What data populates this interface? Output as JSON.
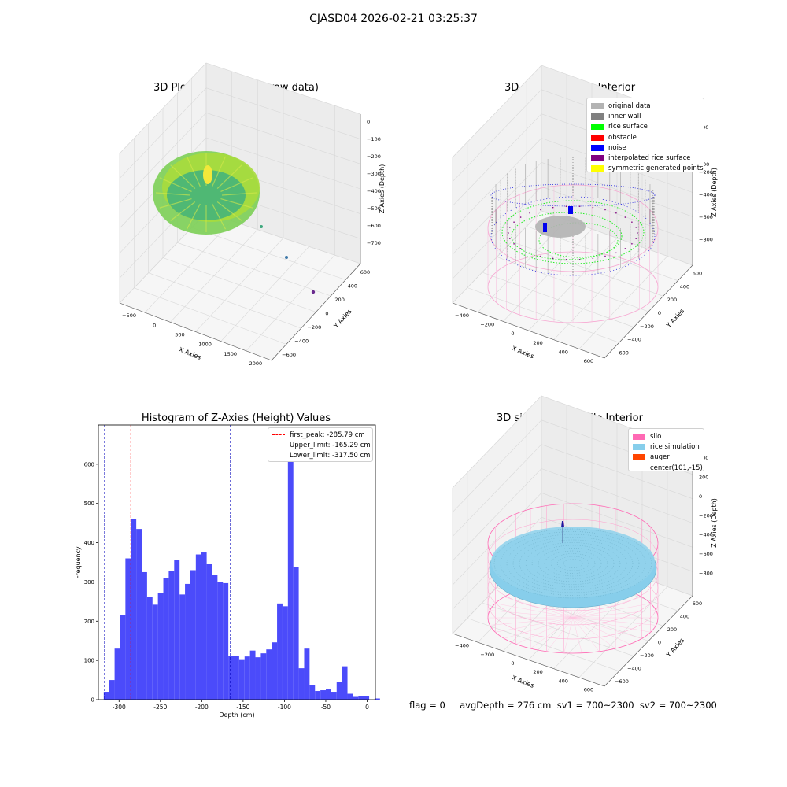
{
  "figure": {
    "suptitle": "CJASD04 2026-02-21 03:25:37",
    "footer": "flag = 0     avgDepth = 276 cm  sv1 = 700~2300  sv2 = 700~2300"
  },
  "panels": {
    "raw": {
      "title": "3D Plot of Silo Interior(row data)",
      "xlabel": "X Axies",
      "ylabel": "Y Axies",
      "zlabel": "Z Axies (Depth)",
      "xticks": [
        "−500",
        "0",
        "500",
        "1000",
        "1500",
        "2000"
      ],
      "yticks": [
        "600",
        "400",
        "200",
        "0",
        "−200",
        "−400",
        "−600"
      ],
      "zticks": [
        "0",
        "−100",
        "−200",
        "−300",
        "−400",
        "−500",
        "−600",
        "−700"
      ]
    },
    "classify": {
      "title": "3D classify of Silo Interior",
      "xlabel": "X Axies",
      "ylabel": "Y Axies",
      "zlabel": "Z Axies (Depth)",
      "xticks": [
        "−400",
        "−200",
        "0",
        "200",
        "400",
        "600"
      ],
      "yticks": [
        "600",
        "400",
        "200",
        "0",
        "−200",
        "−400",
        "−600"
      ],
      "zticks": [
        "200",
        "0",
        "−200",
        "−400",
        "−600",
        "−800"
      ],
      "zticks_top_partial": "00",
      "legend": [
        {
          "label": "original data",
          "color": "#b3b3b3"
        },
        {
          "label": "inner wall",
          "color": "#808080"
        },
        {
          "label": "rice surface",
          "color": "#00ff00"
        },
        {
          "label": "obstacle",
          "color": "#ff0000"
        },
        {
          "label": "noise",
          "color": "#0000ff"
        },
        {
          "label": "interpolated rice surface",
          "color": "#800080"
        },
        {
          "label": "symmetric generated points",
          "color": "#ffff00"
        }
      ]
    },
    "simulation": {
      "title": "3D simulation of Silo Interior",
      "xlabel": "X Axies",
      "ylabel": "Y Axies",
      "zlabel": "Z Axies (Depth)",
      "xticks": [
        "−400",
        "−200",
        "0",
        "200",
        "400",
        "600"
      ],
      "yticks": [
        "600",
        "400",
        "200",
        "0",
        "−200",
        "−400",
        "−600"
      ],
      "zticks": [
        "400",
        "200",
        "0",
        "−200",
        "−400",
        "−600",
        "−800"
      ],
      "legend": [
        {
          "label": "silo",
          "color": "#ff69b4"
        },
        {
          "label": "rice simulation",
          "color": "#87ceeb"
        },
        {
          "label": "auger",
          "color": "#ff4500"
        },
        {
          "label": "center(101,-15)",
          "color": ""
        }
      ]
    }
  },
  "chart_data": {
    "type": "bar",
    "title": "Histogram of Z-Axies (Height) Values",
    "xlabel": "Depth (cm)",
    "ylabel": "Frequency",
    "xlim": [
      -325,
      10
    ],
    "ylim": [
      0,
      700
    ],
    "xticks": [
      -300,
      -250,
      -200,
      -150,
      -100,
      -50,
      0
    ],
    "yticks": [
      0,
      100,
      200,
      300,
      400,
      500,
      600
    ],
    "bin_start": -318.5,
    "bin_width": 6.55,
    "values": [
      20,
      50,
      130,
      215,
      360,
      460,
      435,
      325,
      262,
      242,
      272,
      310,
      328,
      355,
      268,
      295,
      330,
      370,
      375,
      345,
      318,
      300,
      297,
      112,
      112,
      103,
      110,
      125,
      108,
      118,
      128,
      146,
      245,
      238,
      635,
      338,
      80,
      130,
      37,
      22,
      24,
      26,
      20,
      45,
      85,
      15,
      7,
      8,
      8,
      0,
      3
    ],
    "annotations": [
      {
        "label": "first_peak: -285.79 cm",
        "x": -285.79,
        "color": "#ff0000"
      },
      {
        "label": "Upper_limit: -165.29 cm",
        "x": -165.29,
        "color": "#0000bb"
      },
      {
        "label": "Lower_limit: -317.50 cm",
        "x": -317.5,
        "color": "#0000bb"
      }
    ],
    "bar_color": "#4b4bfa",
    "legend_position": "top-right"
  }
}
